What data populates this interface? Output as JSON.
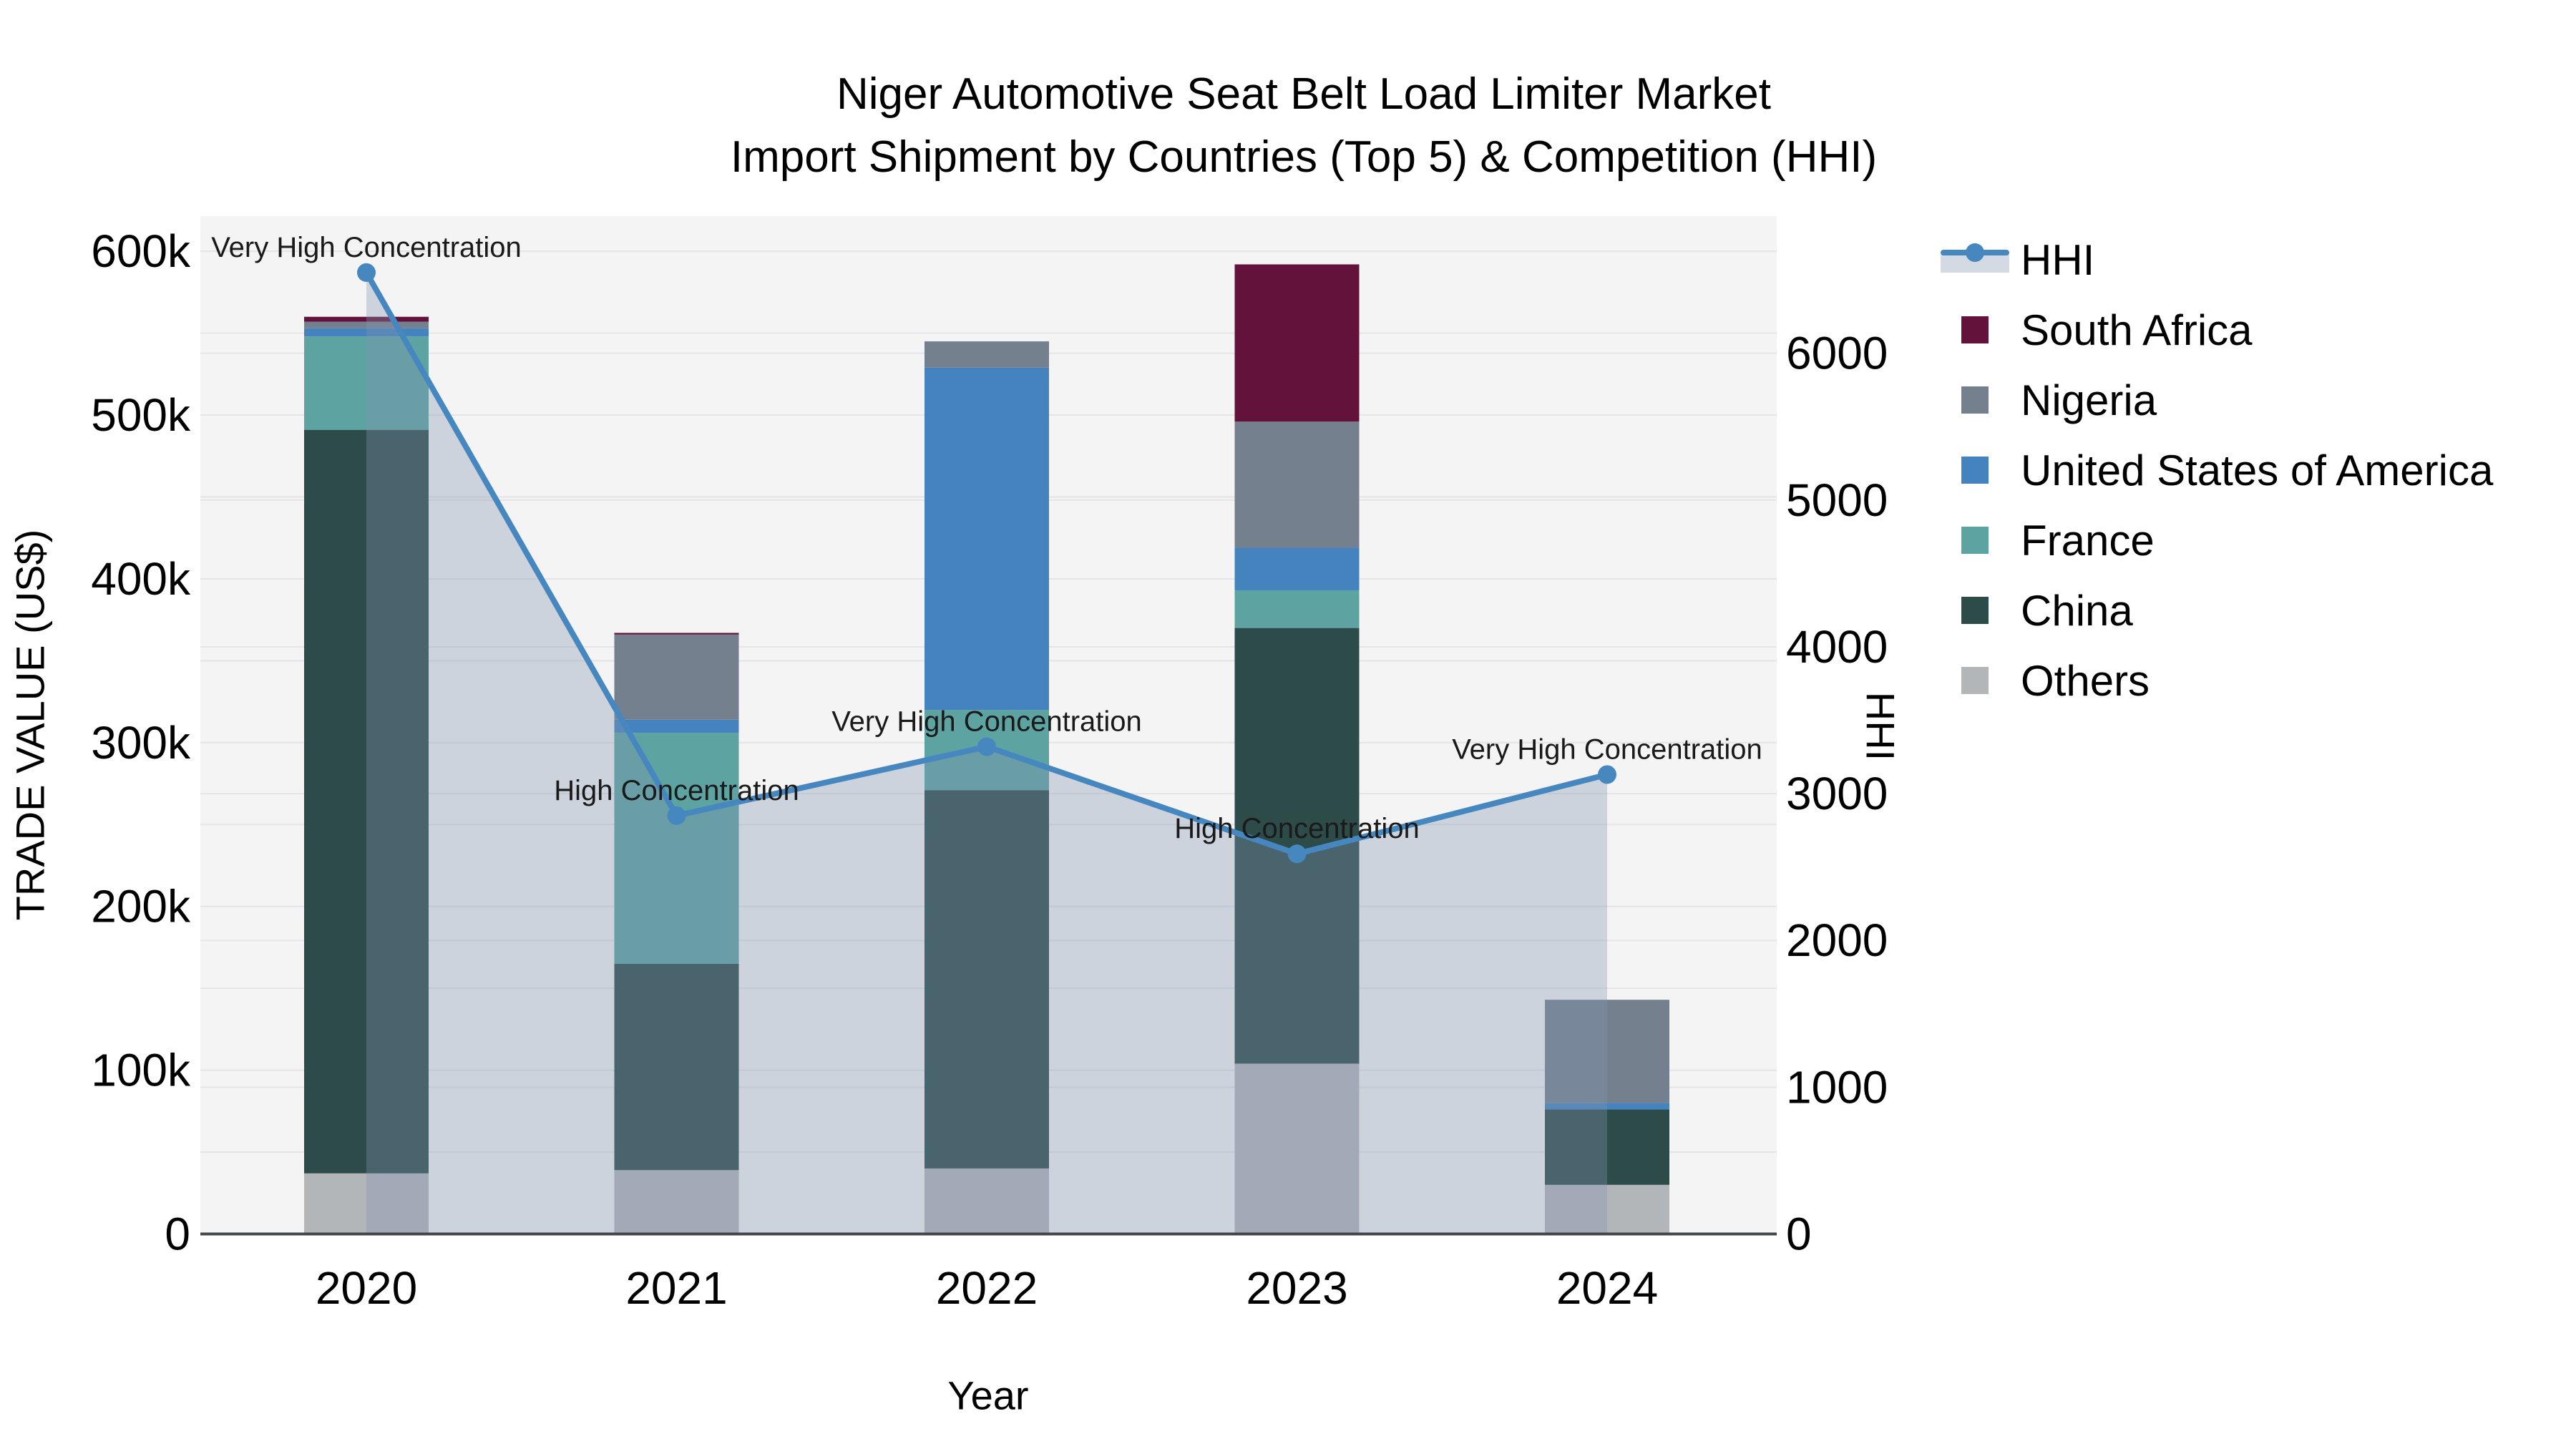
{
  "title": {
    "line1": "Niger Automotive Seat Belt Load Limiter Market",
    "line2": "Import Shipment by Countries (Top 5) & Competition (HHI)"
  },
  "axes": {
    "x_title": "Year",
    "y_left_title": "TRADE VALUE (US$)",
    "y_right_title": "HHI",
    "y_left_tick_labels": [
      "0",
      "100k",
      "200k",
      "300k",
      "400k",
      "500k",
      "600k"
    ],
    "y_right_tick_labels": [
      "0",
      "1000",
      "2000",
      "3000",
      "4000",
      "5000",
      "6000"
    ]
  },
  "legend": {
    "items": [
      {
        "label": "HHI",
        "swatch": "line",
        "color": "#4687c0"
      },
      {
        "label": "South Africa",
        "swatch": "square",
        "color": "#63133b"
      },
      {
        "label": "Nigeria",
        "swatch": "square",
        "color": "#75808f"
      },
      {
        "label": "United States of America",
        "swatch": "square",
        "color": "#4483be"
      },
      {
        "label": "France",
        "swatch": "square",
        "color": "#5ca3a1"
      },
      {
        "label": "China",
        "swatch": "square",
        "color": "#2d4b49"
      },
      {
        "label": "Others",
        "swatch": "square",
        "color": "#b3b6b9"
      }
    ]
  },
  "chart_data": {
    "type": "bar+line",
    "title": "Niger Automotive Seat Belt Load Limiter Market Import Shipment by Countries (Top 5) & Competition (HHI)",
    "xlabel": "Year",
    "ylabel_left": "TRADE VALUE (US$)",
    "ylabel_right": "HHI",
    "categories": [
      "2020",
      "2021",
      "2022",
      "2023",
      "2024"
    ],
    "ylim_left": [
      0,
      620000
    ],
    "ylim_right": [
      0,
      6940
    ],
    "grid": true,
    "legend_position": "right",
    "bar_series_bottom_to_top": [
      {
        "name": "Others",
        "color": "#b3b6b9",
        "values": [
          37000,
          39000,
          40000,
          104000,
          30000
        ]
      },
      {
        "name": "China",
        "color": "#2d4b49",
        "values": [
          454000,
          126000,
          231000,
          266000,
          46000
        ]
      },
      {
        "name": "France",
        "color": "#5ca3a1",
        "values": [
          57000,
          141000,
          49000,
          23000,
          0
        ]
      },
      {
        "name": "United States of America",
        "color": "#4483be",
        "values": [
          5000,
          8000,
          209000,
          26000,
          4000
        ]
      },
      {
        "name": "Nigeria",
        "color": "#75808f",
        "values": [
          4000,
          52000,
          16000,
          77000,
          63000
        ]
      },
      {
        "name": "South Africa",
        "color": "#63133b",
        "values": [
          3000,
          1000,
          0,
          96000,
          0
        ]
      }
    ],
    "line_series": {
      "name": "HHI",
      "axis": "right",
      "color": "#4687c0",
      "area_fill": "rgba(130,149,177,0.35)",
      "values": [
        6550,
        2850,
        3320,
        2590,
        3130
      ]
    },
    "annotations": [
      {
        "year": "2020",
        "text": "Very High Concentration"
      },
      {
        "year": "2021",
        "text": "High Concentration"
      },
      {
        "year": "2022",
        "text": "Very High Concentration"
      },
      {
        "year": "2023",
        "text": "High Concentration"
      },
      {
        "year": "2024",
        "text": "Very High Concentration"
      }
    ],
    "colors": {
      "plot_background": "#f4f4f5",
      "gridline": "#e4e5e7",
      "axis_line": "#42464a",
      "text": "#000000"
    }
  }
}
